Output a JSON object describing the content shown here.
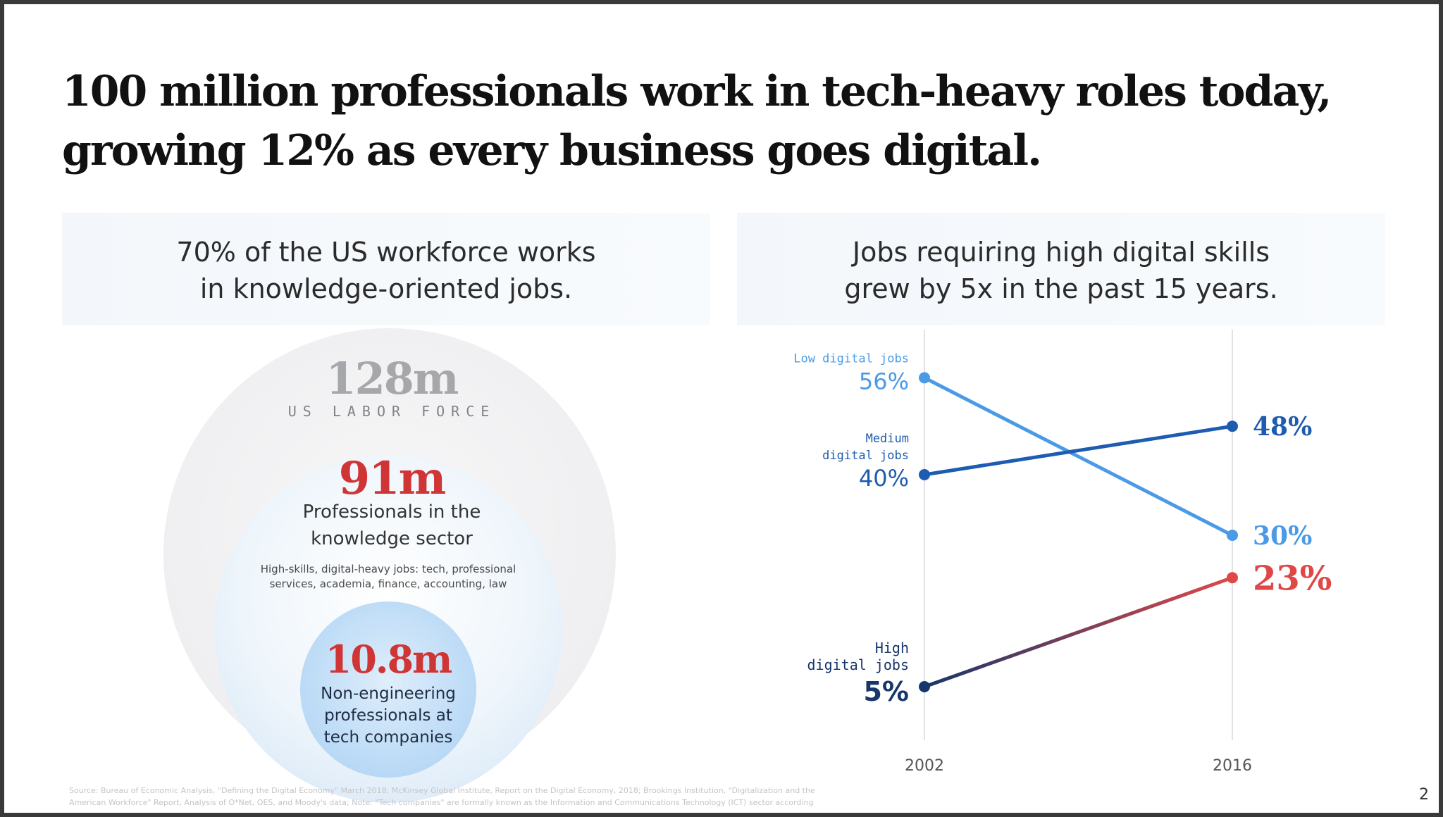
{
  "slide": {
    "headline_line1": "100 million professionals work in tech-heavy roles today,",
    "headline_line2": "growing 12% as every business goes digital.",
    "page_number": "2"
  },
  "left_panel": {
    "title_line1": "70% of the US workforce works",
    "title_line2": "in knowledge-oriented jobs.",
    "labor_force": {
      "value": "128m",
      "label": "US LABOR FORCE"
    },
    "knowledge_sector": {
      "value": "91m",
      "label_line1": "Professionals in the",
      "label_line2": "knowledge sector",
      "sub_line1": "High-skills, digital-heavy jobs: tech, professional",
      "sub_line2": "services, academia, finance, accounting, law"
    },
    "tech_companies": {
      "value": "10.8m",
      "label_line1": "Non-engineering",
      "label_line2": "professionals at",
      "label_line3": "tech companies"
    }
  },
  "right_panel": {
    "title_line1": "Jobs requiring high digital skills",
    "title_line2": "grew by 5x in the past 15 years."
  },
  "chart_data": {
    "type": "line",
    "title": "Jobs requiring high digital skills grew by 5x in the past 15 years.",
    "x": [
      "2002",
      "2016"
    ],
    "ylim": [
      0,
      60
    ],
    "series": [
      {
        "name": "Low digital jobs",
        "label_lines": [
          "Low digital jobs"
        ],
        "values": [
          56,
          30
        ],
        "start_label": "56%",
        "end_label": "30%",
        "color": "#4a9ae6"
      },
      {
        "name": "Medium digital jobs",
        "label_lines": [
          "Medium",
          "digital jobs"
        ],
        "values": [
          40,
          48
        ],
        "start_label": "40%",
        "end_label": "48%",
        "color": "#1d5cb0"
      },
      {
        "name": "High digital jobs",
        "label_lines": [
          "High",
          "digital jobs"
        ],
        "values": [
          5,
          23
        ],
        "start_label": "5%",
        "end_label": "23%",
        "color": "#17366b",
        "end_color": "#e04848"
      }
    ]
  },
  "footnote": {
    "line1": "Source: Bureau of Economic Analysis, \"Defining the Digital Economy\" March 2018; McKinsey Global Institute, Report on the Digital Economy, 2018; Brookings Institution, \"Digitalization and the",
    "line2": "American Workforce\" Report, Analysis of O*Net, OES, and Moody's data; Note: \"Tech companies\" are formally known as the Information and Communications Technology (ICT) sector according"
  }
}
